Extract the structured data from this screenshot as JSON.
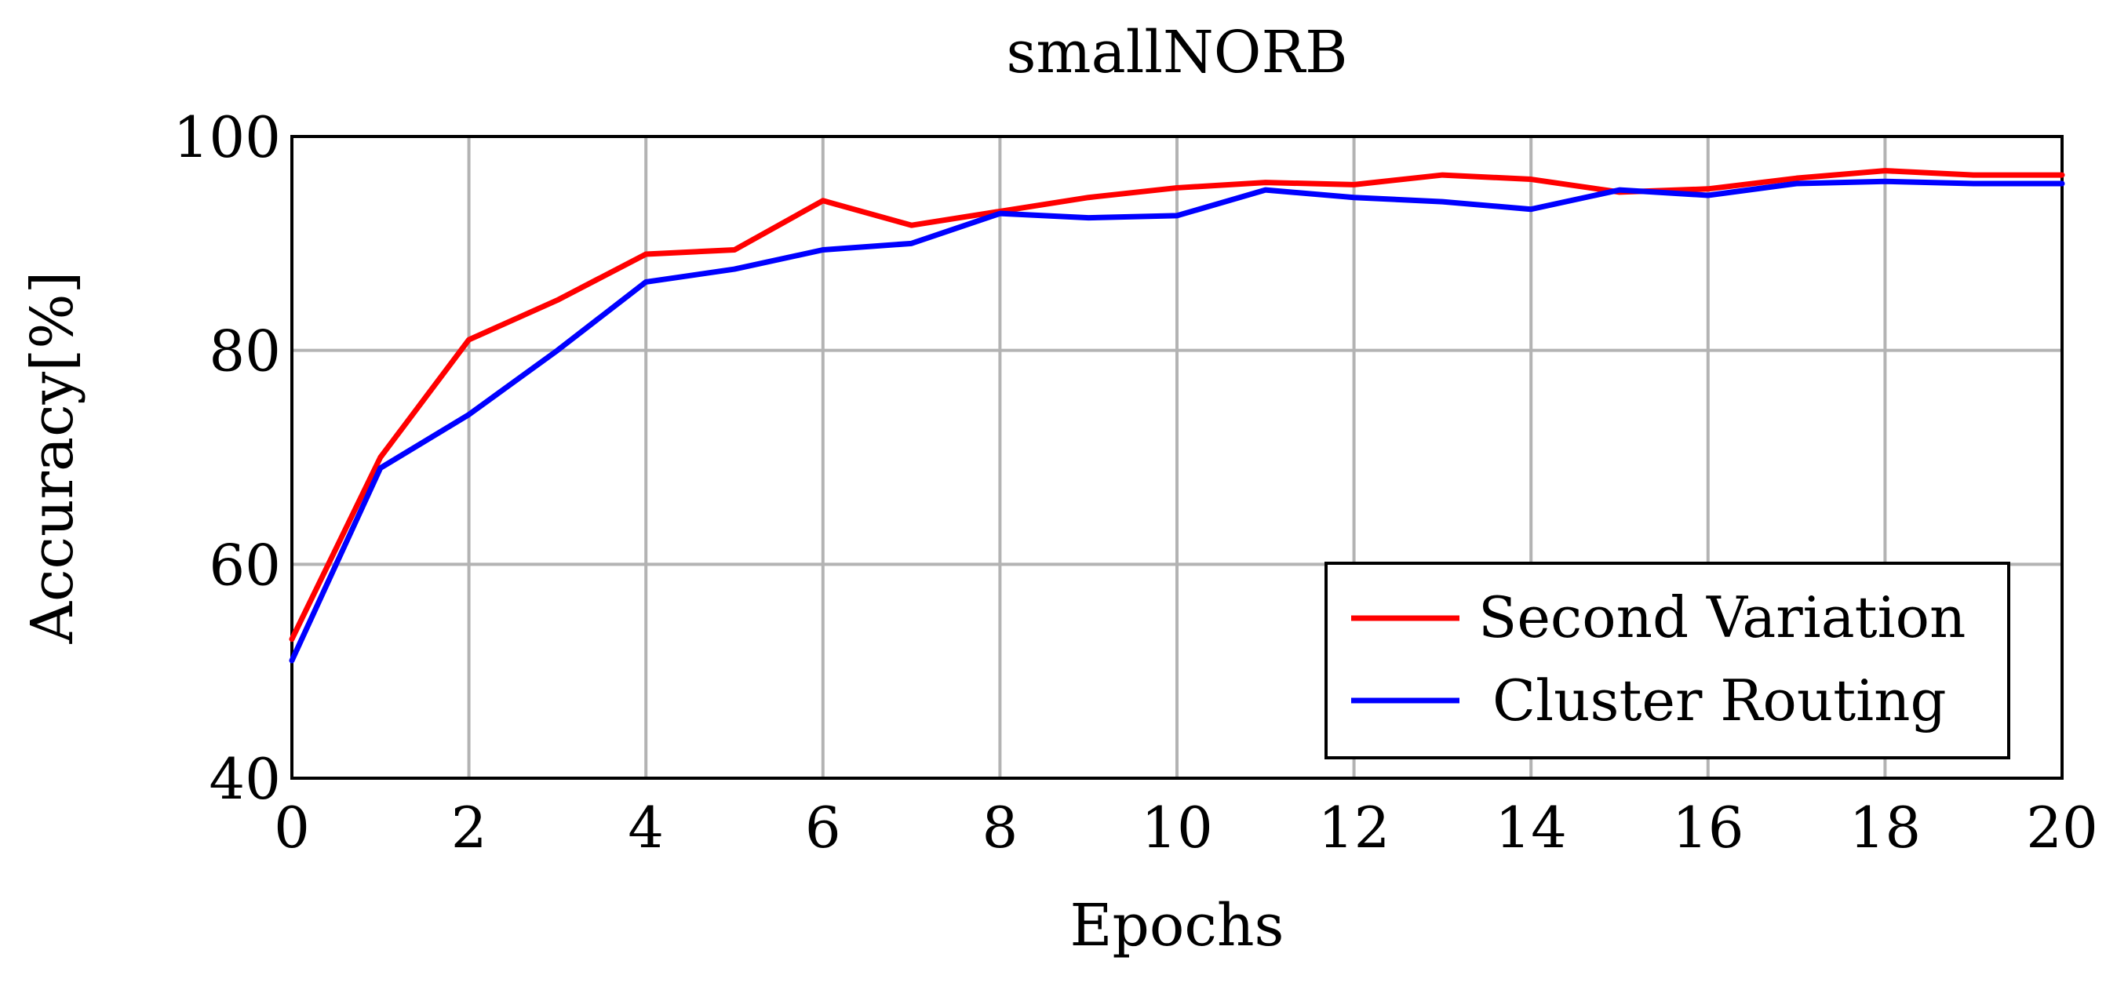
{
  "chart_data": {
    "type": "line",
    "title": "smallNORB",
    "xlabel": "Epochs",
    "ylabel": "Accuracy[%]",
    "xlim": [
      0,
      20
    ],
    "ylim": [
      40,
      100
    ],
    "xticks": [
      0,
      2,
      4,
      6,
      8,
      10,
      12,
      14,
      16,
      18,
      20
    ],
    "yticks": [
      40,
      60,
      80,
      100
    ],
    "grid": true,
    "legend_position": "bottom-right",
    "x": [
      0,
      1,
      2,
      3,
      4,
      5,
      6,
      7,
      8,
      9,
      10,
      11,
      12,
      13,
      14,
      15,
      16,
      17,
      18,
      19,
      20
    ],
    "series": [
      {
        "name": "Second Variation",
        "color": "#ff0000",
        "values": [
          53.0,
          70.0,
          81.0,
          84.7,
          89.0,
          89.4,
          94.0,
          91.7,
          93.0,
          94.3,
          95.2,
          95.7,
          95.5,
          96.4,
          96.0,
          94.8,
          95.1,
          96.1,
          96.8,
          96.4,
          96.4
        ]
      },
      {
        "name": "Cluster Routing",
        "color": "#0000ff",
        "values": [
          51.0,
          69.0,
          74.0,
          80.0,
          86.4,
          87.6,
          89.4,
          90.0,
          92.8,
          92.4,
          92.6,
          95.0,
          94.3,
          93.9,
          93.2,
          95.0,
          94.5,
          95.6,
          95.8,
          95.6,
          95.6
        ]
      }
    ]
  }
}
